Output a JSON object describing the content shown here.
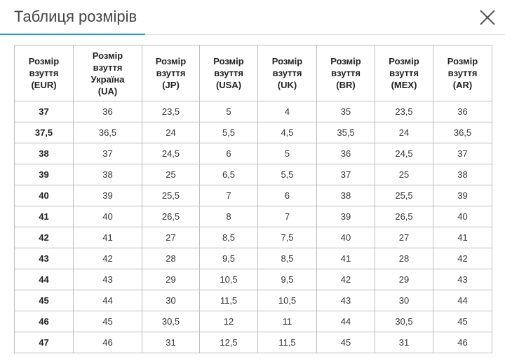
{
  "header": {
    "title": "Таблиця розмірів"
  },
  "table": {
    "headers": [
      [
        "Розмір",
        "взуття",
        "(EUR)"
      ],
      [
        "Розмір",
        "взуття",
        "Україна",
        "(UA)"
      ],
      [
        "Розмір",
        "взуття",
        "(JP)"
      ],
      [
        "Розмір",
        "взуття",
        "(USA)"
      ],
      [
        "Розмір",
        "взуття",
        "(UK)"
      ],
      [
        "Розмір",
        "взуття",
        "(BR)"
      ],
      [
        "Розмір",
        "взуття",
        "(MEX)"
      ],
      [
        "Розмір",
        "взуття",
        "(AR)"
      ]
    ],
    "rows": [
      [
        "37",
        "36",
        "23,5",
        "5",
        "4",
        "35",
        "23,5",
        "36"
      ],
      [
        "37,5",
        "36,5",
        "24",
        "5,5",
        "4,5",
        "35,5",
        "24",
        "36,5"
      ],
      [
        "38",
        "37",
        "24,5",
        "6",
        "5",
        "36",
        "24,5",
        "37"
      ],
      [
        "39",
        "38",
        "25",
        "6,5",
        "5,5",
        "37",
        "25",
        "38"
      ],
      [
        "40",
        "39",
        "25,5",
        "7",
        "6",
        "38",
        "25,5",
        "39"
      ],
      [
        "41",
        "40",
        "26,5",
        "8",
        "7",
        "39",
        "26,5",
        "40"
      ],
      [
        "42",
        "41",
        "27",
        "8,5",
        "7,5",
        "40",
        "27",
        "41"
      ],
      [
        "43",
        "42",
        "28",
        "9,5",
        "8,5",
        "41",
        "28",
        "42"
      ],
      [
        "44",
        "43",
        "29",
        "10,5",
        "9,5",
        "42",
        "29",
        "43"
      ],
      [
        "45",
        "44",
        "30",
        "11,5",
        "10,5",
        "43",
        "30",
        "44"
      ],
      [
        "46",
        "45",
        "30,5",
        "12",
        "11",
        "44",
        "30,5",
        "45"
      ],
      [
        "47",
        "46",
        "31",
        "12,5",
        "11,5",
        "45",
        "31",
        "46"
      ]
    ]
  }
}
